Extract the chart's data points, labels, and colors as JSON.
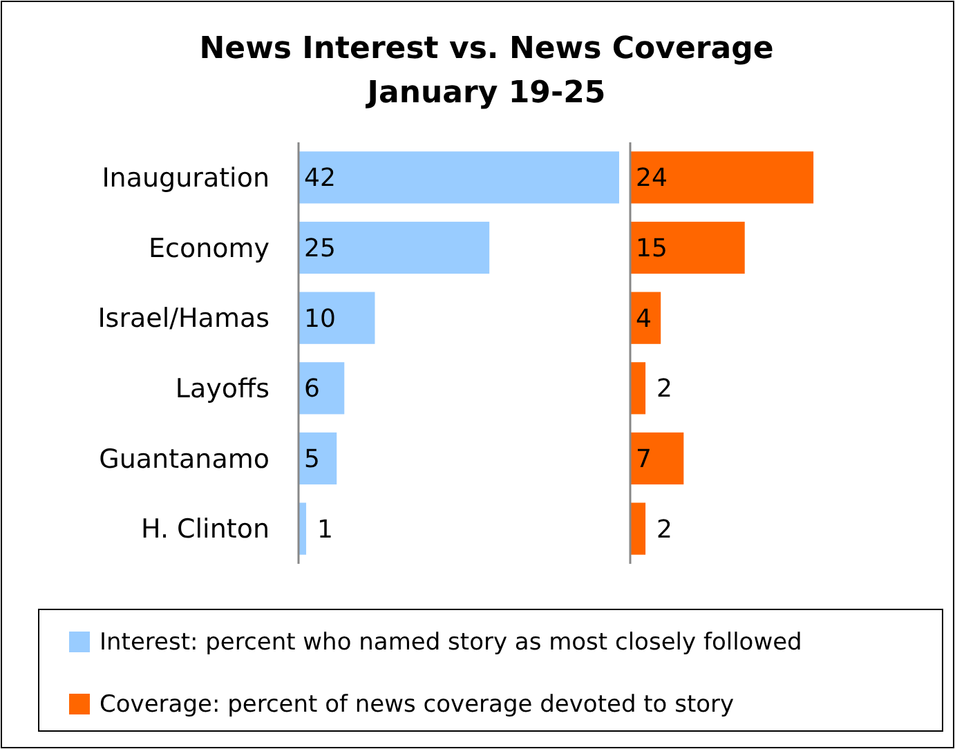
{
  "chart_data": [
    {
      "type": "bar",
      "orientation": "horizontal",
      "title": "News Interest vs. News Coverage",
      "subtitle": "January 19-25",
      "categories": [
        "Inauguration",
        "Economy",
        "Israel/Hamas",
        "Layoffs",
        "Guantanamo",
        "H. Clinton"
      ],
      "series": [
        {
          "name": "Interest: percent who named story as most closely followed",
          "color": "#99ccff",
          "values": [
            42,
            25,
            10,
            6,
            5,
            1
          ]
        }
      ],
      "data_labels": true,
      "legend": "bottom"
    },
    {
      "type": "bar",
      "orientation": "horizontal",
      "categories": [
        null,
        null,
        null,
        null,
        null,
        null
      ],
      "series": [
        {
          "name": "Coverage: percent of news coverage devoted to story",
          "color": "#ff6600",
          "values": [
            24,
            15,
            4,
            2,
            7,
            2
          ]
        }
      ],
      "data_labels": true,
      "legend": "bottom"
    }
  ]
}
